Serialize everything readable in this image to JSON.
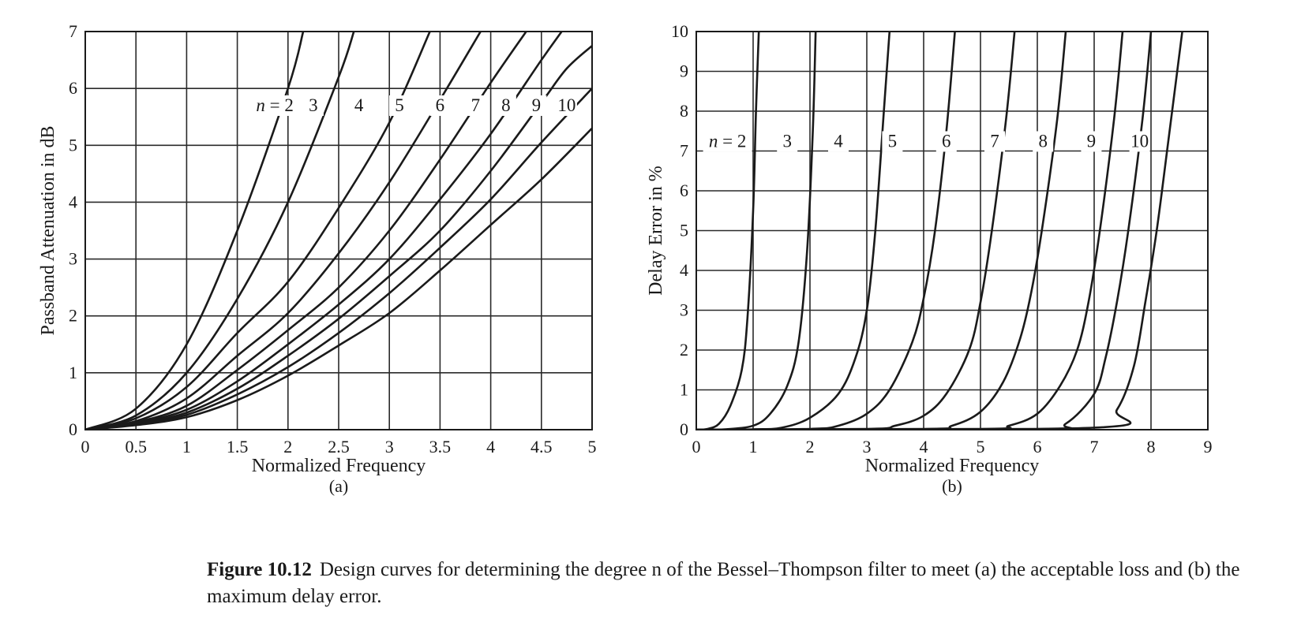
{
  "caption": {
    "figure_number": "Figure 10.12",
    "text": "Design curves for determining the degree n of the Bessel–Thompson filter to meet (a) the acceptable loss and (b) the maximum delay error."
  },
  "chart_data": [
    {
      "type": "line",
      "panel_label": "(a)",
      "xlabel": "Normalized Frequency",
      "ylabel": "Passband Attenuation in dB",
      "xlim": [
        0,
        5
      ],
      "ylim": [
        0,
        7
      ],
      "x_ticks": [
        0,
        0.5,
        1,
        1.5,
        2,
        2.5,
        3,
        3.5,
        4,
        4.5,
        5
      ],
      "y_ticks": [
        0,
        1,
        2,
        3,
        4,
        5,
        6,
        7
      ],
      "grid": true,
      "series": [
        {
          "name": "n = 2",
          "label": "n = 2",
          "label_at": [
            1.87,
            5.6
          ],
          "points": [
            [
              0,
              0
            ],
            [
              0.5,
              0.37
            ],
            [
              1,
              1.5
            ],
            [
              1.5,
              3.5
            ],
            [
              2,
              6.0
            ],
            [
              2.15,
              7.0
            ]
          ]
        },
        {
          "name": "3",
          "label": "3",
          "label_at": [
            2.25,
            5.6
          ],
          "points": [
            [
              0,
              0
            ],
            [
              0.5,
              0.25
            ],
            [
              1,
              1.0
            ],
            [
              1.5,
              2.3
            ],
            [
              2,
              4.0
            ],
            [
              2.5,
              6.2
            ],
            [
              2.65,
              7.0
            ]
          ]
        },
        {
          "name": "4",
          "label": "4",
          "label_at": [
            2.7,
            5.6
          ],
          "points": [
            [
              0,
              0
            ],
            [
              0.5,
              0.2
            ],
            [
              1,
              0.75
            ],
            [
              1.5,
              1.7
            ],
            [
              2,
              2.6
            ],
            [
              2.5,
              3.9
            ],
            [
              3,
              5.4
            ],
            [
              3.4,
              7.0
            ]
          ]
        },
        {
          "name": "5",
          "label": "5",
          "label_at": [
            3.1,
            5.6
          ],
          "points": [
            [
              0,
              0
            ],
            [
              0.5,
              0.15
            ],
            [
              1,
              0.55
            ],
            [
              1.5,
              1.3
            ],
            [
              2,
              2.05
            ],
            [
              2.5,
              3.1
            ],
            [
              3,
              4.35
            ],
            [
              3.5,
              5.8
            ],
            [
              3.9,
              7.0
            ]
          ]
        },
        {
          "name": "6",
          "label": "6",
          "label_at": [
            3.5,
            5.6
          ],
          "points": [
            [
              0,
              0
            ],
            [
              0.5,
              0.13
            ],
            [
              1,
              0.42
            ],
            [
              1.5,
              1.05
            ],
            [
              2,
              1.75
            ],
            [
              2.5,
              2.5
            ],
            [
              3,
              3.5
            ],
            [
              3.5,
              4.75
            ],
            [
              4,
              6.1
            ],
            [
              4.35,
              7.0
            ]
          ]
        },
        {
          "name": "7",
          "label": "7",
          "label_at": [
            3.85,
            5.6
          ],
          "points": [
            [
              0,
              0
            ],
            [
              0.5,
              0.12
            ],
            [
              1,
              0.35
            ],
            [
              1.5,
              0.85
            ],
            [
              2,
              1.5
            ],
            [
              2.5,
              2.2
            ],
            [
              3,
              3.0
            ],
            [
              3.5,
              4.05
            ],
            [
              4,
              5.2
            ],
            [
              4.5,
              6.5
            ],
            [
              4.7,
              7.0
            ]
          ]
        },
        {
          "name": "8",
          "label": "8",
          "label_at": [
            4.15,
            5.6
          ],
          "points": [
            [
              0,
              0
            ],
            [
              0.5,
              0.1
            ],
            [
              1,
              0.3
            ],
            [
              1.5,
              0.72
            ],
            [
              2,
              1.3
            ],
            [
              2.5,
              1.95
            ],
            [
              3,
              2.7
            ],
            [
              3.5,
              3.5
            ],
            [
              4,
              4.55
            ],
            [
              4.5,
              5.75
            ],
            [
              4.75,
              6.35
            ],
            [
              5,
              6.75
            ]
          ]
        },
        {
          "name": "9",
          "label": "9",
          "label_at": [
            4.45,
            5.6
          ],
          "points": [
            [
              0,
              0
            ],
            [
              0.5,
              0.09
            ],
            [
              1,
              0.26
            ],
            [
              1.5,
              0.62
            ],
            [
              2,
              1.1
            ],
            [
              2.5,
              1.7
            ],
            [
              3,
              2.4
            ],
            [
              3.5,
              3.2
            ],
            [
              4,
              4.05
            ],
            [
              4.5,
              5.05
            ],
            [
              5,
              6.0
            ]
          ]
        },
        {
          "name": "10",
          "label": "10",
          "label_at": [
            4.75,
            5.6
          ],
          "points": [
            [
              0,
              0
            ],
            [
              0.5,
              0.08
            ],
            [
              1,
              0.22
            ],
            [
              1.5,
              0.52
            ],
            [
              2,
              0.95
            ],
            [
              2.5,
              1.48
            ],
            [
              3,
              2.05
            ],
            [
              3.5,
              2.8
            ],
            [
              4,
              3.6
            ],
            [
              4.5,
              4.4
            ],
            [
              5,
              5.3
            ]
          ]
        }
      ]
    },
    {
      "type": "line",
      "panel_label": "(b)",
      "xlabel": "Normalized Frequency",
      "ylabel": "Delay Error in %",
      "xlim": [
        0,
        9
      ],
      "ylim": [
        0,
        10
      ],
      "x_ticks": [
        0,
        1,
        2,
        3,
        4,
        5,
        6,
        7,
        8,
        9
      ],
      "y_ticks": [
        0,
        1,
        2,
        3,
        4,
        5,
        6,
        7,
        8,
        9,
        10
      ],
      "grid": true,
      "series": [
        {
          "name": "n = 2",
          "label": "n = 2",
          "label_at": [
            0.55,
            7.1
          ],
          "points": [
            [
              0,
              0
            ],
            [
              0.2,
              0.02
            ],
            [
              0.4,
              0.15
            ],
            [
              0.6,
              0.6
            ],
            [
              0.8,
              1.5
            ],
            [
              0.9,
              2.8
            ],
            [
              1,
              5.5
            ],
            [
              1.05,
              8.0
            ],
            [
              1.1,
              10
            ]
          ]
        },
        {
          "name": "3",
          "label": "3",
          "label_at": [
            1.6,
            7.1
          ],
          "points": [
            [
              0,
              0
            ],
            [
              0.5,
              0.01
            ],
            [
              1,
              0.1
            ],
            [
              1.3,
              0.4
            ],
            [
              1.6,
              1.1
            ],
            [
              1.8,
              2.2
            ],
            [
              1.95,
              4.5
            ],
            [
              2.05,
              7.5
            ],
            [
              2.1,
              10
            ]
          ]
        },
        {
          "name": "4",
          "label": "4",
          "label_at": [
            2.5,
            7.1
          ],
          "points": [
            [
              0,
              0
            ],
            [
              1,
              0.01
            ],
            [
              1.5,
              0.05
            ],
            [
              2,
              0.3
            ],
            [
              2.5,
              0.9
            ],
            [
              2.8,
              1.8
            ],
            [
              3,
              3.0
            ],
            [
              3.15,
              5.0
            ],
            [
              3.3,
              8.0
            ],
            [
              3.4,
              10
            ]
          ]
        },
        {
          "name": "5",
          "label": "5",
          "label_at": [
            3.45,
            7.1
          ],
          "points": [
            [
              0,
              0
            ],
            [
              2,
              0.02
            ],
            [
              2.5,
              0.1
            ],
            [
              3,
              0.4
            ],
            [
              3.4,
              1.0
            ],
            [
              3.8,
              2.2
            ],
            [
              4,
              3.3
            ],
            [
              4.2,
              5.0
            ],
            [
              4.4,
              7.5
            ],
            [
              4.55,
              10
            ]
          ]
        },
        {
          "name": "6",
          "label": "6",
          "label_at": [
            4.4,
            7.1
          ],
          "points": [
            [
              0,
              0
            ],
            [
              3,
              0.02
            ],
            [
              3.5,
              0.1
            ],
            [
              4,
              0.35
            ],
            [
              4.4,
              0.9
            ],
            [
              4.8,
              2.0
            ],
            [
              5,
              3.2
            ],
            [
              5.2,
              5.0
            ],
            [
              5.45,
              7.8
            ],
            [
              5.6,
              10
            ]
          ]
        },
        {
          "name": "7",
          "label": "7",
          "label_at": [
            5.25,
            7.1
          ],
          "points": [
            [
              0,
              0
            ],
            [
              4,
              0.02
            ],
            [
              4.5,
              0.1
            ],
            [
              5,
              0.45
            ],
            [
              5.4,
              1.2
            ],
            [
              5.7,
              2.3
            ],
            [
              5.9,
              3.5
            ],
            [
              6.1,
              5.2
            ],
            [
              6.35,
              7.8
            ],
            [
              6.5,
              10
            ]
          ]
        },
        {
          "name": "8",
          "label": "8",
          "label_at": [
            6.1,
            7.1
          ],
          "points": [
            [
              0,
              0
            ],
            [
              5,
              0.02
            ],
            [
              5.5,
              0.1
            ],
            [
              6,
              0.4
            ],
            [
              6.4,
              1.1
            ],
            [
              6.7,
              2.0
            ],
            [
              6.9,
              3.2
            ],
            [
              7.1,
              5.0
            ],
            [
              7.35,
              7.8
            ],
            [
              7.5,
              10
            ]
          ]
        },
        {
          "name": "9",
          "label": "9",
          "label_at": [
            6.95,
            7.1
          ],
          "points": [
            [
              0,
              0
            ],
            [
              6,
              0.02
            ],
            [
              6.5,
              0.15
            ],
            [
              7,
              0.9
            ],
            [
              7.2,
              1.8
            ],
            [
              7.4,
              3.2
            ],
            [
              7.6,
              5.0
            ],
            [
              7.85,
              7.8
            ],
            [
              8,
              10
            ]
          ]
        },
        {
          "name": "10",
          "label": "10",
          "label_at": [
            7.8,
            7.1
          ],
          "points": [
            [
              0,
              0
            ],
            [
              7,
              0.05
            ],
            [
              7.4,
              0.5
            ],
            [
              7.7,
              1.6
            ],
            [
              7.9,
              3.2
            ],
            [
              8.1,
              5.0
            ],
            [
              8.3,
              7.2
            ],
            [
              8.55,
              10
            ]
          ]
        }
      ]
    }
  ]
}
